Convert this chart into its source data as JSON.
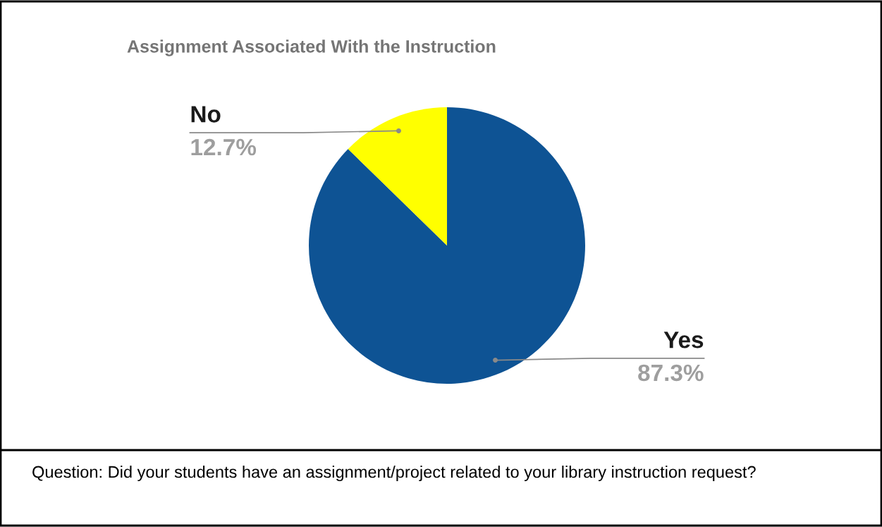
{
  "chart_data": {
    "type": "pie",
    "title": "Assignment Associated With the Instruction",
    "categories": [
      "Yes",
      "No"
    ],
    "values": [
      87.3,
      12.7
    ],
    "colors": [
      "#0e5394",
      "#ffff00"
    ],
    "value_labels": [
      "87.3%",
      "12.7%"
    ],
    "annotations": [
      "Question: Did your students have an assignment/project related to your library instruction request?"
    ]
  }
}
